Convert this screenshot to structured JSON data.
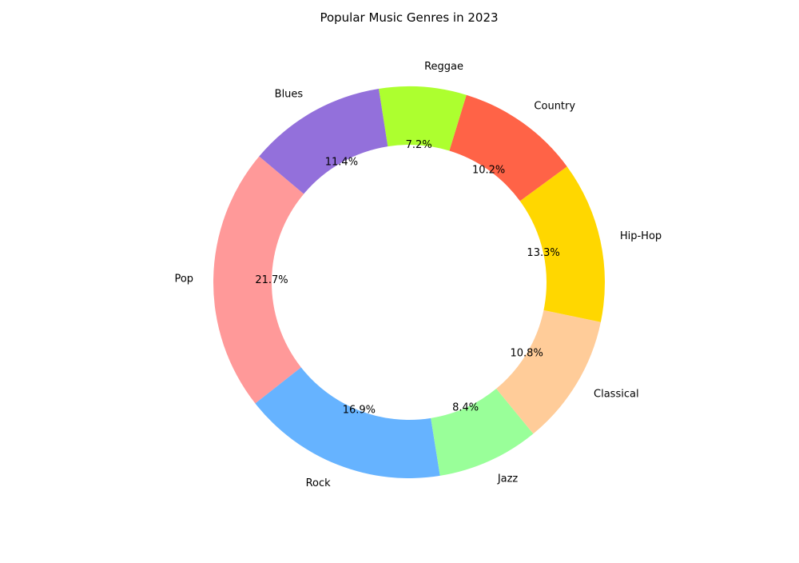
{
  "chart_data": {
    "type": "pie",
    "style": "donut",
    "title": "Popular Music Genres in 2023",
    "start_angle_deg": 140,
    "direction": "counterclockwise",
    "categories": [
      "Pop",
      "Rock",
      "Jazz",
      "Classical",
      "Hip-Hop",
      "Country",
      "Reggae",
      "Blues"
    ],
    "values": [
      21.7,
      16.9,
      8.4,
      10.8,
      13.3,
      10.2,
      7.2,
      11.4
    ],
    "value_labels": [
      "21.7%",
      "16.9%",
      "8.4%",
      "10.8%",
      "13.3%",
      "10.2%",
      "7.2%",
      "11.4%"
    ],
    "colors": [
      "#ff9999",
      "#66b3ff",
      "#99ff99",
      "#ffcc99",
      "#ffd700",
      "#ff6347",
      "#adff2f",
      "#9370db"
    ]
  }
}
